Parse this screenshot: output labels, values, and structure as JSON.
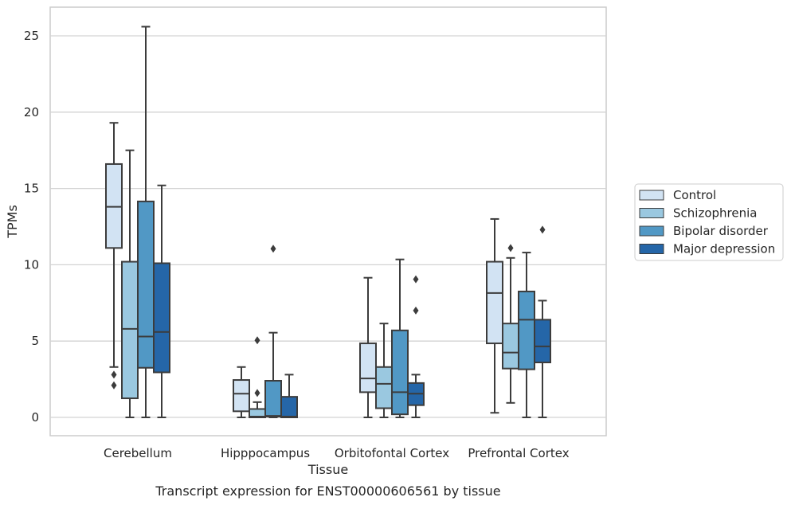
{
  "chart_data": {
    "type": "boxplot",
    "title": "Transcript expression for ENST00000606561 by tissue",
    "xlabel": "Tissue",
    "ylabel": "TPMs",
    "ylim": [
      -1.2,
      27
    ],
    "yticks": [
      0,
      5,
      10,
      15,
      20,
      25
    ],
    "grid": "horizontal",
    "legend_position": "right",
    "categories": [
      "Cerebellum",
      "Hipppocampus",
      "Orbitofontal Cortex",
      "Prefrontal Cortex"
    ],
    "series": [
      {
        "name": "Control",
        "color": "#d2e3f3",
        "boxes": [
          {
            "whislo": 3.3,
            "q1": 11.1,
            "med": 13.8,
            "q3": 16.6,
            "whishi": 19.3,
            "fliers": [
              2.8,
              2.1
            ]
          },
          {
            "whislo": 0.0,
            "q1": 0.4,
            "med": 1.55,
            "q3": 2.45,
            "whishi": 3.3,
            "fliers": []
          },
          {
            "whislo": 0.0,
            "q1": 1.65,
            "med": 2.55,
            "q3": 4.85,
            "whishi": 9.15,
            "fliers": []
          },
          {
            "whislo": 0.3,
            "q1": 4.85,
            "med": 8.15,
            "q3": 10.2,
            "whishi": 13.0,
            "fliers": []
          }
        ]
      },
      {
        "name": "Schizophrenia",
        "color": "#9ac8e0",
        "boxes": [
          {
            "whislo": 0.0,
            "q1": 1.25,
            "med": 5.8,
            "q3": 10.2,
            "whishi": 17.5,
            "fliers": []
          },
          {
            "whislo": 0.0,
            "q1": 0.0,
            "med": 0.05,
            "q3": 0.55,
            "whishi": 1.0,
            "fliers": [
              1.6,
              5.05
            ]
          },
          {
            "whislo": 0.0,
            "q1": 0.6,
            "med": 2.2,
            "q3": 3.3,
            "whishi": 6.15,
            "fliers": []
          },
          {
            "whislo": 0.95,
            "q1": 3.2,
            "med": 4.25,
            "q3": 6.15,
            "whishi": 10.45,
            "fliers": [
              11.1
            ]
          }
        ]
      },
      {
        "name": "Bipolar disorder",
        "color": "#5198c5",
        "boxes": [
          {
            "whislo": 0.0,
            "q1": 3.25,
            "med": 5.3,
            "q3": 14.15,
            "whishi": 25.6,
            "fliers": []
          },
          {
            "whislo": 0.0,
            "q1": 0.05,
            "med": 0.1,
            "q3": 2.4,
            "whishi": 5.55,
            "fliers": [
              11.05
            ]
          },
          {
            "whislo": 0.0,
            "q1": 0.2,
            "med": 1.65,
            "q3": 5.7,
            "whishi": 10.35,
            "fliers": []
          },
          {
            "whislo": 0.0,
            "q1": 3.15,
            "med": 6.4,
            "q3": 8.25,
            "whishi": 10.8,
            "fliers": []
          }
        ]
      },
      {
        "name": "Major depression",
        "color": "#2566a8",
        "boxes": [
          {
            "whislo": 0.0,
            "q1": 2.95,
            "med": 5.6,
            "q3": 10.1,
            "whishi": 15.2,
            "fliers": []
          },
          {
            "whislo": 0.0,
            "q1": 0.0,
            "med": 0.05,
            "q3": 1.35,
            "whishi": 2.8,
            "fliers": []
          },
          {
            "whislo": 0.0,
            "q1": 0.8,
            "med": 1.55,
            "q3": 2.25,
            "whishi": 2.8,
            "fliers": [
              7.0,
              9.05
            ]
          },
          {
            "whislo": 0.0,
            "q1": 3.6,
            "med": 4.65,
            "q3": 6.4,
            "whishi": 7.65,
            "fliers": [
              12.3
            ]
          }
        ]
      }
    ]
  }
}
